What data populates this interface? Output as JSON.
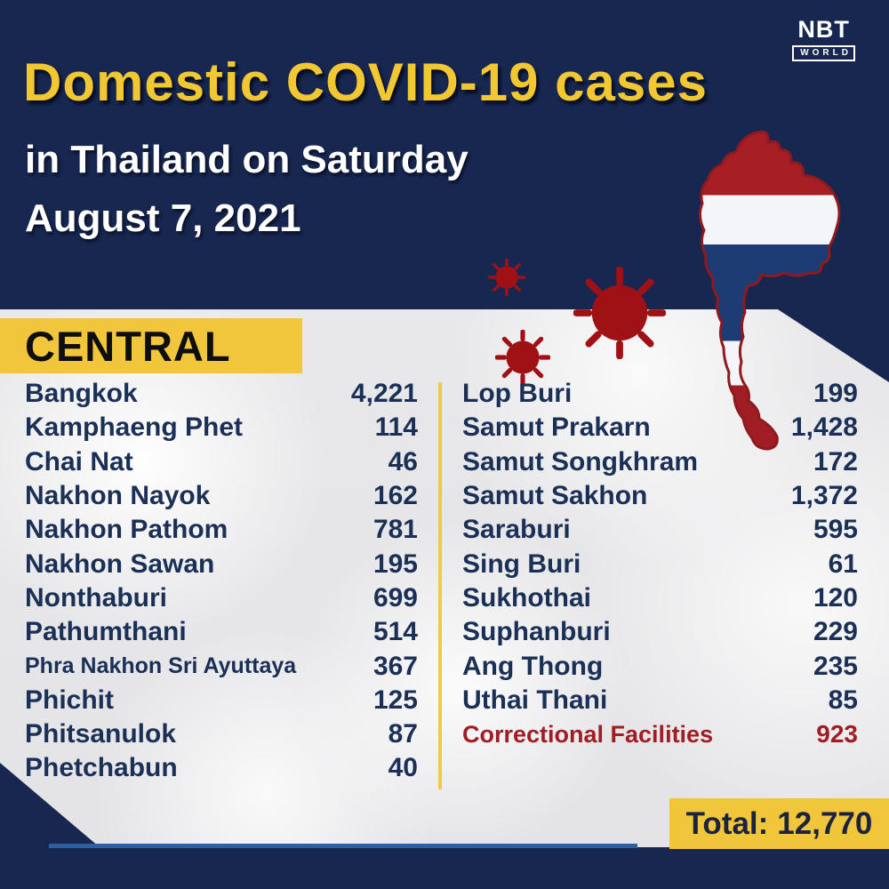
{
  "brand": {
    "name": "NBT",
    "tagline": "WORLD"
  },
  "header": {
    "title": "Domestic COVID-19 cases",
    "subtitle_line1": "in Thailand on Saturday",
    "subtitle_line2": "August 7, 2021"
  },
  "footer": {
    "total_prefix": "Total:"
  },
  "colors": {
    "background_navy": "#172750",
    "accent_yellow": "#F2C63B",
    "title_yellow": "#F2C832",
    "row_text_navy": "#1B3057",
    "alert_red": "#A01D24",
    "virus_red": "#A01115",
    "light_section": "#E8E8EA"
  },
  "chart_data": {
    "type": "table",
    "title": "Domestic COVID-19 cases",
    "subtitle": "in Thailand on Saturday August 7, 2021",
    "region": "CENTRAL",
    "columns": [
      "Province",
      "Cases"
    ],
    "left_rows": [
      {
        "name": "Bangkok",
        "cases": 4221,
        "display": "4,221"
      },
      {
        "name": "Kamphaeng Phet",
        "cases": 114,
        "display": "114"
      },
      {
        "name": "Chai Nat",
        "cases": 46,
        "display": "46"
      },
      {
        "name": "Nakhon Nayok",
        "cases": 162,
        "display": "162"
      },
      {
        "name": "Nakhon Pathom",
        "cases": 781,
        "display": "781"
      },
      {
        "name": "Nakhon Sawan",
        "cases": 195,
        "display": "195"
      },
      {
        "name": "Nonthaburi",
        "cases": 699,
        "display": "699"
      },
      {
        "name": "Pathumthani",
        "cases": 514,
        "display": "514"
      },
      {
        "name": "Phra Nakhon Sri Ayuttaya",
        "cases": 367,
        "display": "367",
        "small": true
      },
      {
        "name": "Phichit",
        "cases": 125,
        "display": "125"
      },
      {
        "name": "Phitsanulok",
        "cases": 87,
        "display": "87"
      },
      {
        "name": "Phetchabun",
        "cases": 40,
        "display": "40"
      }
    ],
    "right_rows": [
      {
        "name": "Lop Buri",
        "cases": 199,
        "display": "199"
      },
      {
        "name": "Samut Prakarn",
        "cases": 1428,
        "display": "1,428"
      },
      {
        "name": "Samut Songkhram",
        "cases": 172,
        "display": "172"
      },
      {
        "name": "Samut Sakhon",
        "cases": 1372,
        "display": "1,372"
      },
      {
        "name": "Saraburi",
        "cases": 595,
        "display": "595"
      },
      {
        "name": "Sing Buri",
        "cases": 61,
        "display": "61"
      },
      {
        "name": "Sukhothai",
        "cases": 120,
        "display": "120"
      },
      {
        "name": "Suphanburi",
        "cases": 229,
        "display": "229"
      },
      {
        "name": "Ang Thong",
        "cases": 235,
        "display": "235"
      },
      {
        "name": "Uthai Thani",
        "cases": 85,
        "display": "85"
      },
      {
        "name": "Correctional Facilities",
        "cases": 923,
        "display": "923",
        "alert": true
      }
    ],
    "total": 12770,
    "total_display": "12,770"
  }
}
